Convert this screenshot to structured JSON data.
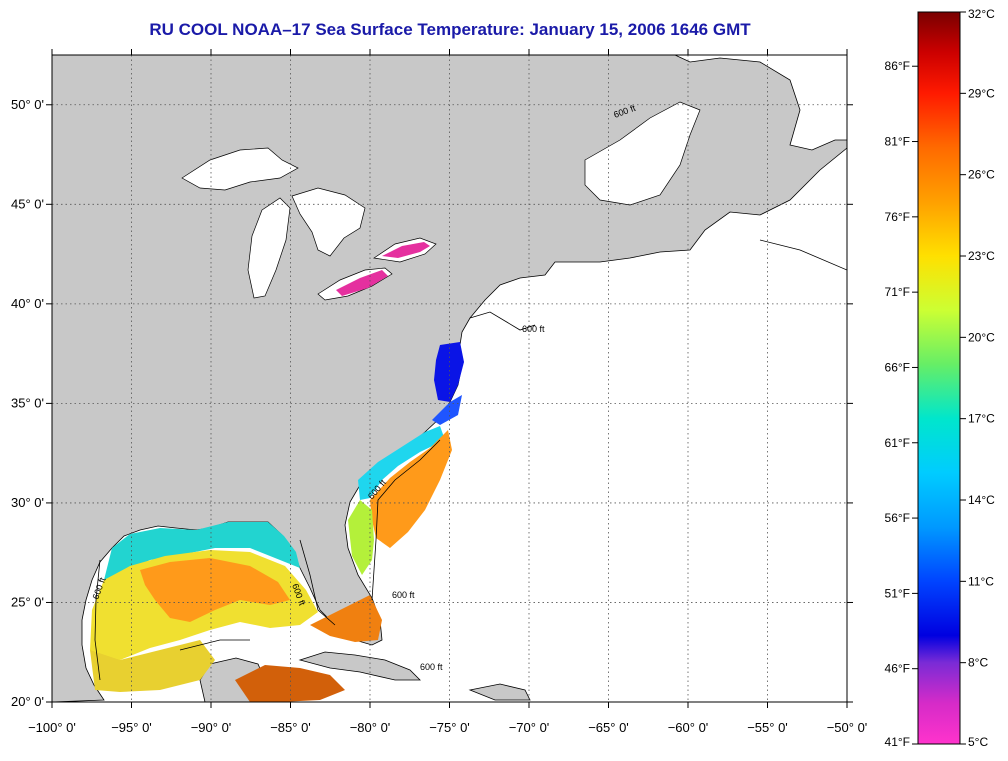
{
  "title": "RU COOL  NOAA–17  Sea Surface Temperature:  January 15, 2006 1646 GMT",
  "map": {
    "lon_range": [
      -100,
      -50
    ],
    "lat_range": [
      20,
      52.5
    ],
    "lon_ticks": [
      {
        "value": -100,
        "label": "−100° 0'"
      },
      {
        "value": -95,
        "label": "−95° 0'"
      },
      {
        "value": -90,
        "label": "−90° 0'"
      },
      {
        "value": -85,
        "label": "−85° 0'"
      },
      {
        "value": -80,
        "label": "−80° 0'"
      },
      {
        "value": -75,
        "label": "−75° 0'"
      },
      {
        "value": -70,
        "label": "−70° 0'"
      },
      {
        "value": -65,
        "label": "−65° 0'"
      },
      {
        "value": -60,
        "label": "−60° 0'"
      },
      {
        "value": -55,
        "label": "−55° 0'"
      },
      {
        "value": -50,
        "label": "−50° 0'"
      }
    ],
    "lat_ticks": [
      {
        "value": 50,
        "label": "50° 0'"
      },
      {
        "value": 45,
        "label": "45° 0'"
      },
      {
        "value": 40,
        "label": "40° 0'"
      },
      {
        "value": 35,
        "label": "35° 0'"
      },
      {
        "value": 30,
        "label": "30° 0'"
      },
      {
        "value": 25,
        "label": "25° 0'"
      },
      {
        "value": 20,
        "label": "20° 0'"
      }
    ],
    "isobath_label": "600 ft",
    "colors": {
      "land": "#c8c8c8",
      "ocean": "#ffffff",
      "grid": "#666666"
    }
  },
  "colorbar": {
    "min_c": 5,
    "max_c": 32,
    "celsius_ticks": [
      {
        "value": 32,
        "label": "32°C"
      },
      {
        "value": 29,
        "label": "29°C"
      },
      {
        "value": 26,
        "label": "26°C"
      },
      {
        "value": 23,
        "label": "23°C"
      },
      {
        "value": 20,
        "label": "20°C"
      },
      {
        "value": 17,
        "label": "17°C"
      },
      {
        "value": 14,
        "label": "14°C"
      },
      {
        "value": 11,
        "label": "11°C"
      },
      {
        "value": 8,
        "label": "8°C"
      },
      {
        "value": 5,
        "label": "5°C"
      }
    ],
    "fahrenheit_ticks": [
      {
        "value": 86,
        "label": "86°F"
      },
      {
        "value": 81,
        "label": "81°F"
      },
      {
        "value": 76,
        "label": "76°F"
      },
      {
        "value": 71,
        "label": "71°F"
      },
      {
        "value": 66,
        "label": "66°F"
      },
      {
        "value": 61,
        "label": "61°F"
      },
      {
        "value": 56,
        "label": "56°F"
      },
      {
        "value": 51,
        "label": "51°F"
      },
      {
        "value": 46,
        "label": "46°F"
      },
      {
        "value": 41,
        "label": "41°F"
      }
    ],
    "gradient_stops": [
      {
        "c": 32,
        "color": "#7a0000"
      },
      {
        "c": 30.5,
        "color": "#cc0000"
      },
      {
        "c": 29,
        "color": "#ff1a00"
      },
      {
        "c": 27,
        "color": "#ff6a00"
      },
      {
        "c": 25,
        "color": "#ffa000"
      },
      {
        "c": 23,
        "color": "#ffe000"
      },
      {
        "c": 21,
        "color": "#ccff33"
      },
      {
        "c": 19,
        "color": "#66ee66"
      },
      {
        "c": 17,
        "color": "#00e6cc"
      },
      {
        "c": 15,
        "color": "#00ccff"
      },
      {
        "c": 13,
        "color": "#0099ff"
      },
      {
        "c": 11,
        "color": "#0044ff"
      },
      {
        "c": 9,
        "color": "#0000e0"
      },
      {
        "c": 8,
        "color": "#7a2bd6"
      },
      {
        "c": 6.5,
        "color": "#d62bc8"
      },
      {
        "c": 5,
        "color": "#ff33cc"
      }
    ]
  }
}
